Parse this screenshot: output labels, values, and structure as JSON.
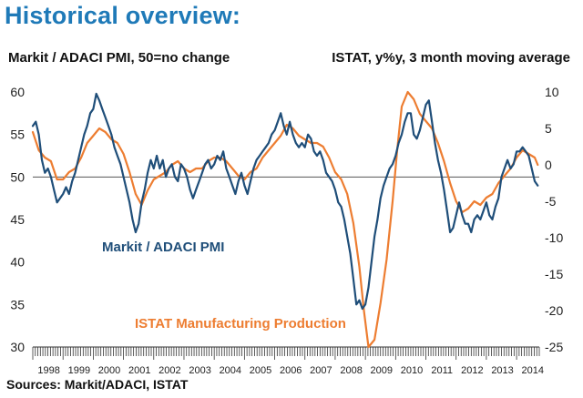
{
  "header": {
    "title": "Historical overview:",
    "left_axis_caption": "Markit / ADACI PMI, 50=no change",
    "right_axis_caption": "ISTAT, y%y, 3 month moving average"
  },
  "footer": {
    "source": "Sources: Markit/ADACI, ISTAT"
  },
  "colors": {
    "pmi": "#1f4e79",
    "istat": "#ed7d31",
    "axis": "#333333",
    "zero_line": "#555555"
  },
  "chart_data": {
    "type": "line",
    "title": "Historical overview:",
    "x_range": [
      1998.0,
      2014.75
    ],
    "x_tick_labels": [
      "1998",
      "1999",
      "2000",
      "2001",
      "2002",
      "2003",
      "2004",
      "2005",
      "2006",
      "2007",
      "2008",
      "2009",
      "2010",
      "2011",
      "2012",
      "2013",
      "2014"
    ],
    "left_axis": {
      "label": "Markit / ADACI PMI, 50=no change",
      "range": [
        30,
        60
      ],
      "ticks": [
        30,
        35,
        40,
        45,
        50,
        55,
        60
      ]
    },
    "right_axis": {
      "label": "ISTAT, y%y, 3 month moving average",
      "range": [
        -25,
        10
      ],
      "ticks": [
        -25,
        -20,
        -15,
        -10,
        -5,
        0,
        5,
        10
      ]
    },
    "reference_line": {
      "axis": "left",
      "value": 50
    },
    "grid": false,
    "series": [
      {
        "name": "Markit / ADACI PMI",
        "axis": "left",
        "points": [
          [
            1998.0,
            56.0
          ],
          [
            1998.1,
            56.5
          ],
          [
            1998.2,
            55.0
          ],
          [
            1998.3,
            52.0
          ],
          [
            1998.4,
            50.5
          ],
          [
            1998.5,
            51.0
          ],
          [
            1998.6,
            50.0
          ],
          [
            1998.7,
            48.5
          ],
          [
            1998.8,
            47.0
          ],
          [
            1998.9,
            47.5
          ],
          [
            1999.0,
            48.0
          ],
          [
            1999.1,
            48.8
          ],
          [
            1999.2,
            48.0
          ],
          [
            1999.3,
            49.5
          ],
          [
            1999.4,
            50.5
          ],
          [
            1999.5,
            52.0
          ],
          [
            1999.6,
            53.5
          ],
          [
            1999.7,
            55.0
          ],
          [
            1999.8,
            56.0
          ],
          [
            1999.9,
            57.5
          ],
          [
            2000.0,
            58.0
          ],
          [
            2000.1,
            59.8
          ],
          [
            2000.2,
            59.0
          ],
          [
            2000.3,
            58.0
          ],
          [
            2000.4,
            57.0
          ],
          [
            2000.5,
            56.0
          ],
          [
            2000.6,
            55.0
          ],
          [
            2000.7,
            53.5
          ],
          [
            2000.8,
            52.5
          ],
          [
            2000.9,
            51.5
          ],
          [
            2001.0,
            50.0
          ],
          [
            2001.1,
            48.5
          ],
          [
            2001.2,
            47.0
          ],
          [
            2001.3,
            45.0
          ],
          [
            2001.4,
            43.5
          ],
          [
            2001.5,
            44.5
          ],
          [
            2001.6,
            47.0
          ],
          [
            2001.7,
            48.5
          ],
          [
            2001.8,
            50.5
          ],
          [
            2001.9,
            52.0
          ],
          [
            2002.0,
            51.0
          ],
          [
            2002.1,
            52.5
          ],
          [
            2002.2,
            51.0
          ],
          [
            2002.3,
            52.0
          ],
          [
            2002.4,
            50.0
          ],
          [
            2002.5,
            51.0
          ],
          [
            2002.6,
            51.5
          ],
          [
            2002.7,
            50.0
          ],
          [
            2002.8,
            49.5
          ],
          [
            2002.9,
            51.5
          ],
          [
            2003.0,
            51.0
          ],
          [
            2003.1,
            50.0
          ],
          [
            2003.2,
            48.5
          ],
          [
            2003.3,
            47.5
          ],
          [
            2003.4,
            48.5
          ],
          [
            2003.5,
            49.5
          ],
          [
            2003.6,
            50.5
          ],
          [
            2003.7,
            51.5
          ],
          [
            2003.8,
            52.0
          ],
          [
            2003.9,
            51.0
          ],
          [
            2004.0,
            51.5
          ],
          [
            2004.1,
            52.5
          ],
          [
            2004.2,
            52.0
          ],
          [
            2004.3,
            53.0
          ],
          [
            2004.4,
            51.0
          ],
          [
            2004.5,
            50.0
          ],
          [
            2004.6,
            49.0
          ],
          [
            2004.7,
            48.0
          ],
          [
            2004.8,
            49.5
          ],
          [
            2004.9,
            50.5
          ],
          [
            2005.0,
            49.0
          ],
          [
            2005.1,
            48.0
          ],
          [
            2005.2,
            49.5
          ],
          [
            2005.3,
            51.0
          ],
          [
            2005.4,
            52.0
          ],
          [
            2005.5,
            52.5
          ],
          [
            2005.6,
            53.0
          ],
          [
            2005.7,
            53.5
          ],
          [
            2005.8,
            54.0
          ],
          [
            2005.9,
            55.0
          ],
          [
            2006.0,
            55.5
          ],
          [
            2006.1,
            56.5
          ],
          [
            2006.2,
            57.5
          ],
          [
            2006.3,
            56.0
          ],
          [
            2006.4,
            55.0
          ],
          [
            2006.5,
            56.5
          ],
          [
            2006.6,
            55.0
          ],
          [
            2006.7,
            54.0
          ],
          [
            2006.8,
            53.5
          ],
          [
            2006.9,
            54.0
          ],
          [
            2007.0,
            53.5
          ],
          [
            2007.1,
            55.0
          ],
          [
            2007.2,
            54.5
          ],
          [
            2007.3,
            53.0
          ],
          [
            2007.4,
            52.5
          ],
          [
            2007.5,
            53.0
          ],
          [
            2007.6,
            52.0
          ],
          [
            2007.7,
            50.5
          ],
          [
            2007.8,
            50.0
          ],
          [
            2007.9,
            49.5
          ],
          [
            2008.0,
            48.5
          ],
          [
            2008.1,
            47.0
          ],
          [
            2008.2,
            46.5
          ],
          [
            2008.3,
            45.0
          ],
          [
            2008.4,
            43.0
          ],
          [
            2008.5,
            41.0
          ],
          [
            2008.6,
            38.0
          ],
          [
            2008.7,
            35.0
          ],
          [
            2008.8,
            35.5
          ],
          [
            2008.9,
            34.5
          ],
          [
            2009.0,
            35.0
          ],
          [
            2009.1,
            37.0
          ],
          [
            2009.2,
            40.0
          ],
          [
            2009.3,
            43.0
          ],
          [
            2009.4,
            45.0
          ],
          [
            2009.5,
            47.5
          ],
          [
            2009.6,
            49.0
          ],
          [
            2009.7,
            50.0
          ],
          [
            2009.8,
            51.0
          ],
          [
            2009.9,
            51.5
          ],
          [
            2010.0,
            52.5
          ],
          [
            2010.1,
            54.0
          ],
          [
            2010.2,
            55.0
          ],
          [
            2010.3,
            56.5
          ],
          [
            2010.4,
            57.5
          ],
          [
            2010.5,
            57.5
          ],
          [
            2010.6,
            55.0
          ],
          [
            2010.7,
            54.5
          ],
          [
            2010.8,
            55.5
          ],
          [
            2010.9,
            57.0
          ],
          [
            2011.0,
            58.5
          ],
          [
            2011.1,
            59.0
          ],
          [
            2011.2,
            56.5
          ],
          [
            2011.3,
            54.0
          ],
          [
            2011.4,
            52.0
          ],
          [
            2011.5,
            50.5
          ],
          [
            2011.6,
            48.5
          ],
          [
            2011.7,
            46.0
          ],
          [
            2011.8,
            43.5
          ],
          [
            2011.9,
            44.0
          ],
          [
            2012.0,
            45.5
          ],
          [
            2012.1,
            47.0
          ],
          [
            2012.2,
            45.5
          ],
          [
            2012.3,
            44.5
          ],
          [
            2012.4,
            44.5
          ],
          [
            2012.5,
            43.5
          ],
          [
            2012.6,
            45.0
          ],
          [
            2012.7,
            45.5
          ],
          [
            2012.8,
            45.0
          ],
          [
            2012.9,
            46.0
          ],
          [
            2013.0,
            47.0
          ],
          [
            2013.1,
            45.5
          ],
          [
            2013.2,
            45.0
          ],
          [
            2013.3,
            46.5
          ],
          [
            2013.4,
            47.5
          ],
          [
            2013.5,
            50.0
          ],
          [
            2013.6,
            51.0
          ],
          [
            2013.7,
            52.0
          ],
          [
            2013.8,
            51.0
          ],
          [
            2013.9,
            51.5
          ],
          [
            2014.0,
            53.0
          ],
          [
            2014.1,
            53.0
          ],
          [
            2014.2,
            53.5
          ],
          [
            2014.3,
            53.0
          ],
          [
            2014.4,
            52.5
          ],
          [
            2014.5,
            51.0
          ],
          [
            2014.6,
            49.5
          ],
          [
            2014.7,
            49.0
          ]
        ]
      },
      {
        "name": "ISTAT Manufacturing Production",
        "axis": "right",
        "points": [
          [
            1998.0,
            4.5
          ],
          [
            1998.2,
            2.0
          ],
          [
            1998.4,
            1.0
          ],
          [
            1998.6,
            0.5
          ],
          [
            1998.8,
            -2.0
          ],
          [
            1999.0,
            -2.0
          ],
          [
            1999.2,
            -1.0
          ],
          [
            1999.4,
            -0.5
          ],
          [
            1999.6,
            1.0
          ],
          [
            1999.8,
            3.0
          ],
          [
            2000.0,
            4.0
          ],
          [
            2000.2,
            5.0
          ],
          [
            2000.4,
            4.5
          ],
          [
            2000.6,
            3.5
          ],
          [
            2000.8,
            3.0
          ],
          [
            2001.0,
            1.5
          ],
          [
            2001.2,
            -1.0
          ],
          [
            2001.4,
            -4.0
          ],
          [
            2001.6,
            -5.5
          ],
          [
            2001.8,
            -3.5
          ],
          [
            2002.0,
            -2.0
          ],
          [
            2002.2,
            -1.5
          ],
          [
            2002.4,
            -1.0
          ],
          [
            2002.6,
            0.0
          ],
          [
            2002.8,
            0.5
          ],
          [
            2003.0,
            -0.5
          ],
          [
            2003.2,
            -1.0
          ],
          [
            2003.4,
            -0.5
          ],
          [
            2003.6,
            -0.5
          ],
          [
            2003.8,
            0.5
          ],
          [
            2004.0,
            1.0
          ],
          [
            2004.2,
            1.0
          ],
          [
            2004.4,
            0.5
          ],
          [
            2004.6,
            -0.5
          ],
          [
            2004.8,
            -1.5
          ],
          [
            2005.0,
            -2.0
          ],
          [
            2005.2,
            -1.0
          ],
          [
            2005.4,
            -0.5
          ],
          [
            2005.6,
            1.0
          ],
          [
            2005.8,
            2.0
          ],
          [
            2006.0,
            3.0
          ],
          [
            2006.2,
            4.0
          ],
          [
            2006.4,
            5.5
          ],
          [
            2006.6,
            5.0
          ],
          [
            2006.8,
            4.0
          ],
          [
            2007.0,
            3.5
          ],
          [
            2007.2,
            3.0
          ],
          [
            2007.4,
            3.0
          ],
          [
            2007.6,
            2.5
          ],
          [
            2007.8,
            1.0
          ],
          [
            2008.0,
            -1.0
          ],
          [
            2008.2,
            -2.0
          ],
          [
            2008.4,
            -4.0
          ],
          [
            2008.6,
            -8.0
          ],
          [
            2008.8,
            -14.0
          ],
          [
            2008.95,
            -20.0
          ],
          [
            2009.1,
            -25.0
          ],
          [
            2009.3,
            -24.0
          ],
          [
            2009.5,
            -19.0
          ],
          [
            2009.7,
            -13.0
          ],
          [
            2009.9,
            -5.0
          ],
          [
            2010.05,
            2.0
          ],
          [
            2010.2,
            8.0
          ],
          [
            2010.4,
            10.0
          ],
          [
            2010.6,
            9.0
          ],
          [
            2010.8,
            7.0
          ],
          [
            2011.0,
            6.0
          ],
          [
            2011.2,
            5.0
          ],
          [
            2011.4,
            3.0
          ],
          [
            2011.6,
            0.5
          ],
          [
            2011.8,
            -2.5
          ],
          [
            2012.0,
            -5.0
          ],
          [
            2012.2,
            -6.5
          ],
          [
            2012.4,
            -6.0
          ],
          [
            2012.6,
            -5.0
          ],
          [
            2012.8,
            -5.5
          ],
          [
            2013.0,
            -4.5
          ],
          [
            2013.2,
            -4.0
          ],
          [
            2013.4,
            -2.5
          ],
          [
            2013.6,
            -1.5
          ],
          [
            2013.8,
            -0.5
          ],
          [
            2014.0,
            1.0
          ],
          [
            2014.2,
            2.0
          ],
          [
            2014.4,
            1.5
          ],
          [
            2014.6,
            1.0
          ],
          [
            2014.7,
            0.0
          ]
        ]
      }
    ],
    "annotations": [
      {
        "text": "Markit / ADACI PMI",
        "series": "Markit / ADACI PMI"
      },
      {
        "text": "ISTAT Manufacturing Production",
        "series": "ISTAT Manufacturing Production"
      }
    ]
  }
}
